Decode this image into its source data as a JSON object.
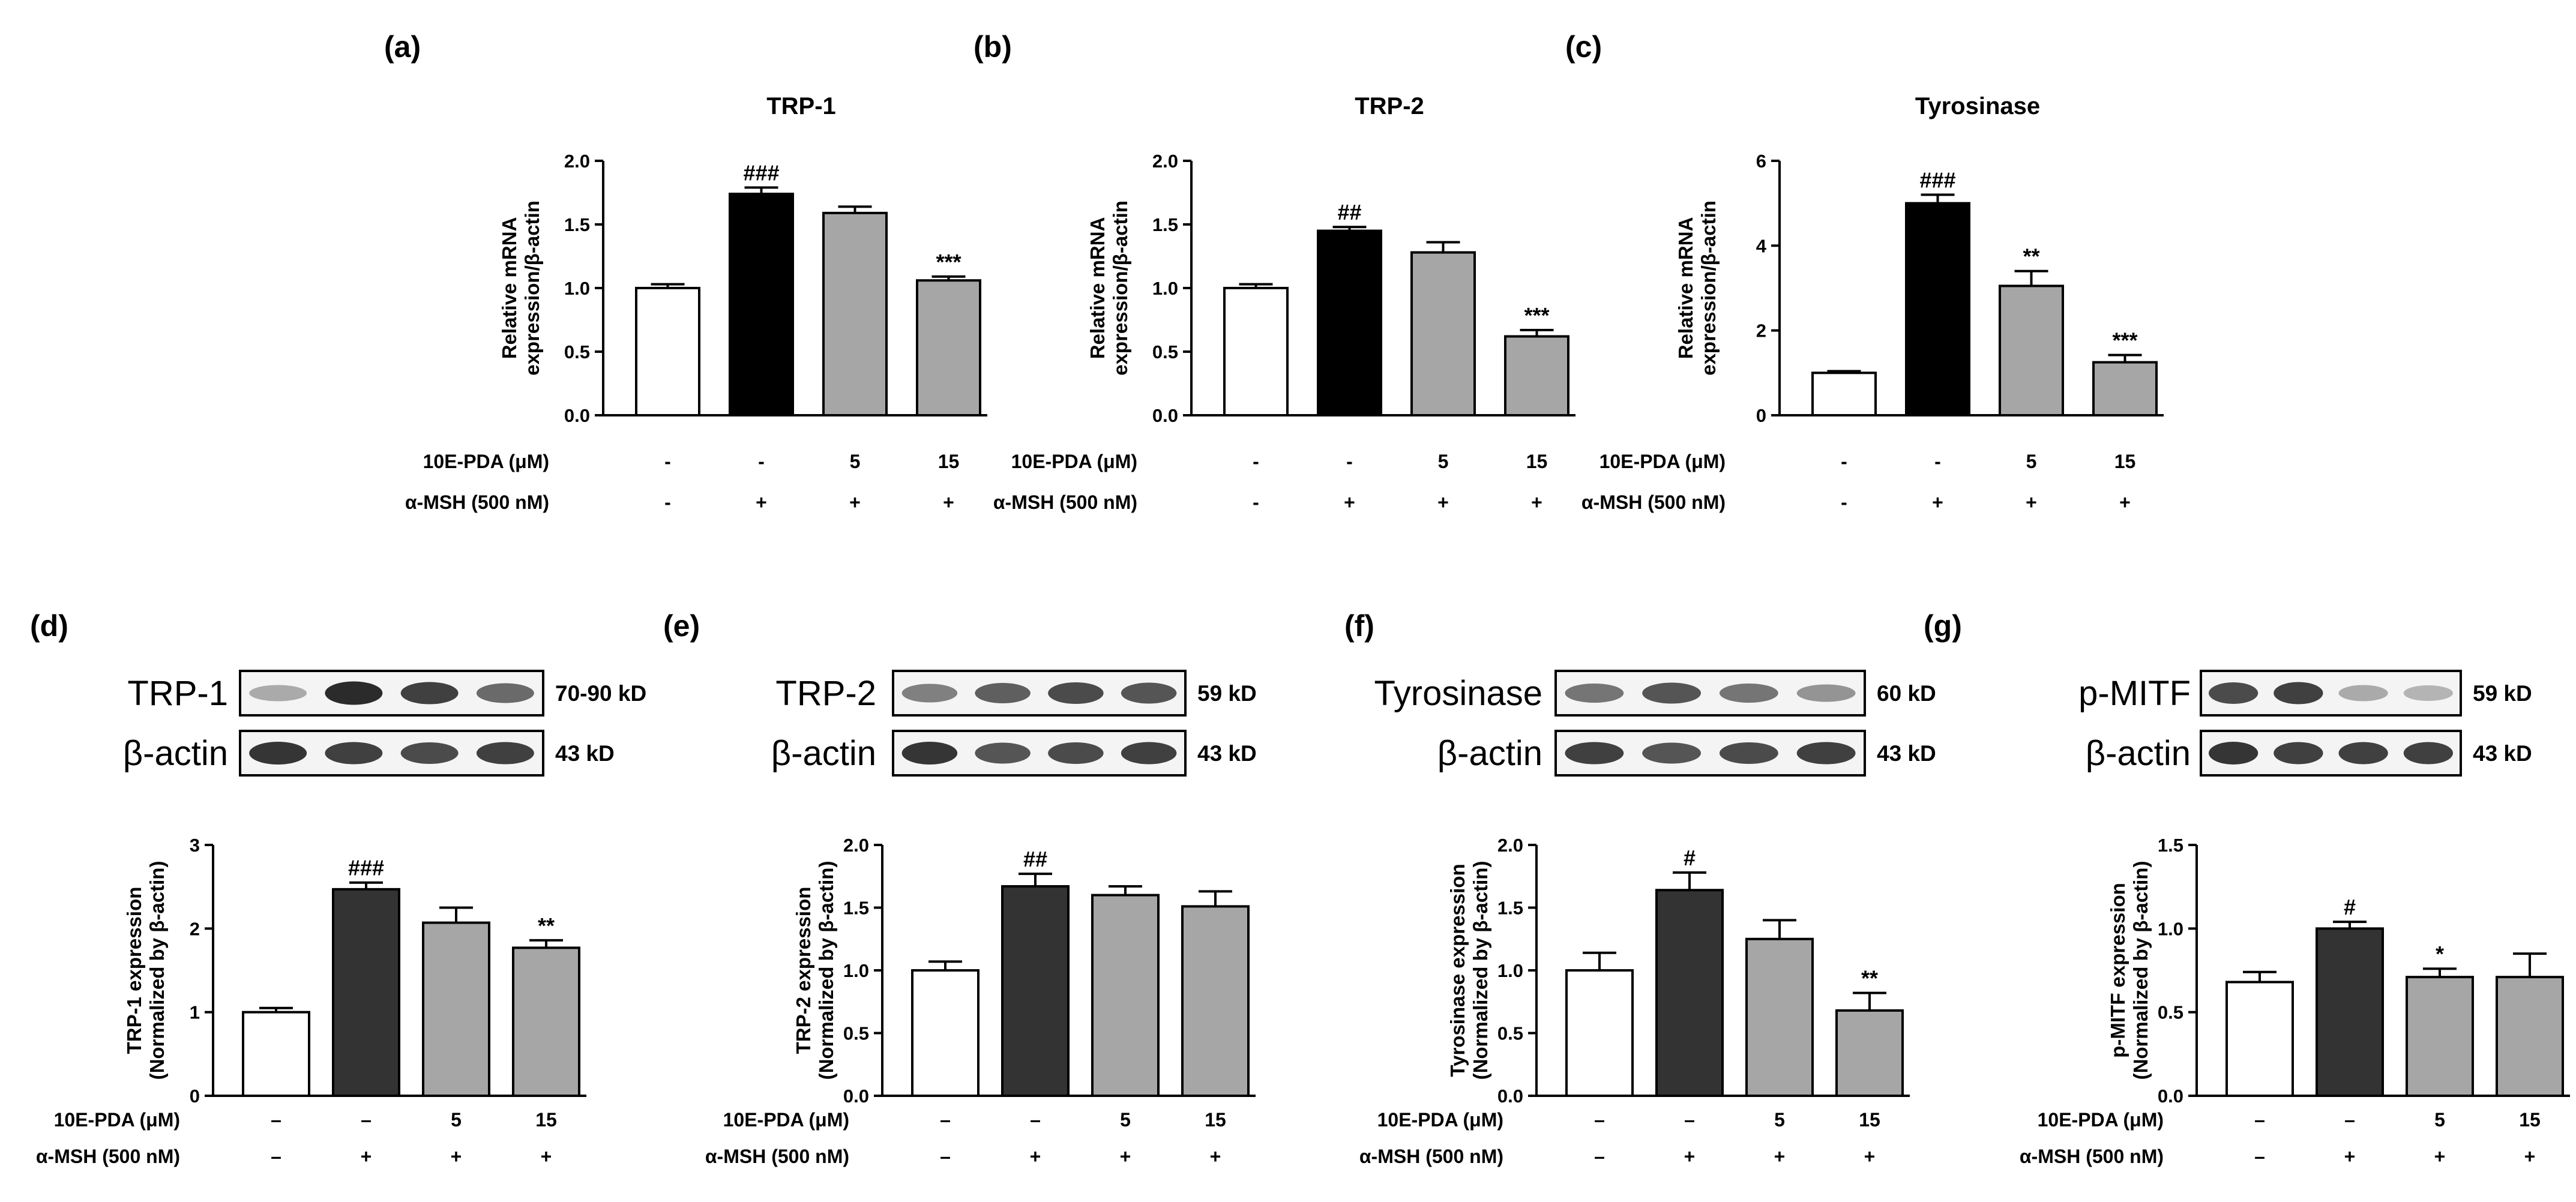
{
  "colors": {
    "control": "#ffffff",
    "msh": "#000000",
    "treated": "#a6a6a6",
    "msh_blot_panel": "#333333",
    "blot_band": "#202020"
  },
  "row_labels": {
    "pda": "10E-PDA (μM)",
    "msh": "α-MSH (500 nM)"
  },
  "treatments": {
    "pda": [
      "-",
      "-",
      "5",
      "15"
    ],
    "msh": [
      "-",
      "+",
      "+",
      "+"
    ],
    "pda_blot": [
      "–",
      "–",
      "5",
      "15"
    ],
    "msh_blot": [
      "–",
      "+",
      "+",
      "+"
    ]
  },
  "blots": [
    {
      "panel": "d",
      "rows": [
        {
          "label": "TRP-1",
          "size": "70-90 kD"
        },
        {
          "label": "β-actin",
          "size": "43 kD"
        }
      ]
    },
    {
      "panel": "e",
      "rows": [
        {
          "label": "TRP-2",
          "size": "59 kD"
        },
        {
          "label": "β-actin",
          "size": "43 kD"
        }
      ]
    },
    {
      "panel": "f",
      "rows": [
        {
          "label": "Tyrosinase",
          "size": "60 kD"
        },
        {
          "label": "β-actin",
          "size": "43 kD"
        }
      ]
    },
    {
      "panel": "g",
      "rows": [
        {
          "label": "p-MITF",
          "size": "59 kD"
        },
        {
          "label": "β-actin",
          "size": "43 kD"
        }
      ]
    }
  ],
  "chart_data": [
    {
      "panel": "(a)",
      "type": "bar",
      "title": "TRP-1",
      "ylabel": [
        "Relative mRNA",
        "expression/β-actin"
      ],
      "ylim": [
        0,
        2.0
      ],
      "yticks": [
        "0.0",
        "0.5",
        "1.0",
        "1.5",
        "2.0"
      ],
      "values": [
        1.0,
        1.74,
        1.59,
        1.06
      ],
      "errors": [
        0.03,
        0.05,
        0.05,
        0.03
      ],
      "annotations": [
        "",
        "###",
        "",
        "***"
      ]
    },
    {
      "panel": "(b)",
      "type": "bar",
      "title": "TRP-2",
      "ylabel": [
        "Relative mRNA",
        "expression/β-actin"
      ],
      "ylim": [
        0,
        2.0
      ],
      "yticks": [
        "0.0",
        "0.5",
        "1.0",
        "1.5",
        "2.0"
      ],
      "values": [
        1.0,
        1.45,
        1.28,
        0.62
      ],
      "errors": [
        0.03,
        0.03,
        0.08,
        0.05
      ],
      "annotations": [
        "",
        "##",
        "",
        "***"
      ]
    },
    {
      "panel": "(c)",
      "type": "bar",
      "title": "Tyrosinase",
      "ylabel": [
        "Relative mRNA",
        "expression/β-actin"
      ],
      "ylim": [
        0,
        6
      ],
      "yticks": [
        "0",
        "2",
        "4",
        "6"
      ],
      "values": [
        1.0,
        5.0,
        3.05,
        1.25
      ],
      "errors": [
        0.04,
        0.2,
        0.35,
        0.17
      ],
      "annotations": [
        "",
        "###",
        "**",
        "***"
      ]
    },
    {
      "panel": "(d)",
      "type": "bar",
      "title": "",
      "ylabel": [
        "TRP-1 expression",
        "(Normalized by β-actin)"
      ],
      "ylim": [
        0,
        3
      ],
      "yticks": [
        "0",
        "1",
        "2",
        "3"
      ],
      "values": [
        1.0,
        2.47,
        2.07,
        1.77
      ],
      "errors": [
        0.05,
        0.08,
        0.18,
        0.09
      ],
      "annotations": [
        "",
        "###",
        "",
        "**"
      ]
    },
    {
      "panel": "(e)",
      "type": "bar",
      "title": "",
      "ylabel": [
        "TRP-2 expression",
        "(Normalized by β-actin)"
      ],
      "ylim": [
        0,
        2.0
      ],
      "yticks": [
        "0.0",
        "0.5",
        "1.0",
        "1.5",
        "2.0"
      ],
      "values": [
        1.0,
        1.67,
        1.6,
        1.51
      ],
      "errors": [
        0.07,
        0.1,
        0.07,
        0.12
      ],
      "annotations": [
        "",
        "##",
        "",
        ""
      ]
    },
    {
      "panel": "(f)",
      "type": "bar",
      "title": "",
      "ylabel": [
        "Tyrosinase expression",
        "(Normalized by β-actin)"
      ],
      "ylim": [
        0,
        2.0
      ],
      "yticks": [
        "0.0",
        "0.5",
        "1.0",
        "1.5",
        "2.0"
      ],
      "values": [
        1.0,
        1.64,
        1.25,
        0.68
      ],
      "errors": [
        0.14,
        0.14,
        0.15,
        0.14
      ],
      "annotations": [
        "",
        "#",
        "",
        "**"
      ]
    },
    {
      "panel": "(g)",
      "type": "bar",
      "title": "",
      "ylabel": [
        "p-MITF expression",
        "(Normalized by β-actin)"
      ],
      "ylim": [
        0,
        1.5
      ],
      "yticks": [
        "0.0",
        "0.5",
        "1.0",
        "1.5"
      ],
      "values": [
        0.68,
        1.0,
        0.71,
        0.71
      ],
      "errors": [
        0.06,
        0.04,
        0.05,
        0.14
      ],
      "annotations": [
        "",
        "#",
        "*",
        ""
      ]
    }
  ]
}
